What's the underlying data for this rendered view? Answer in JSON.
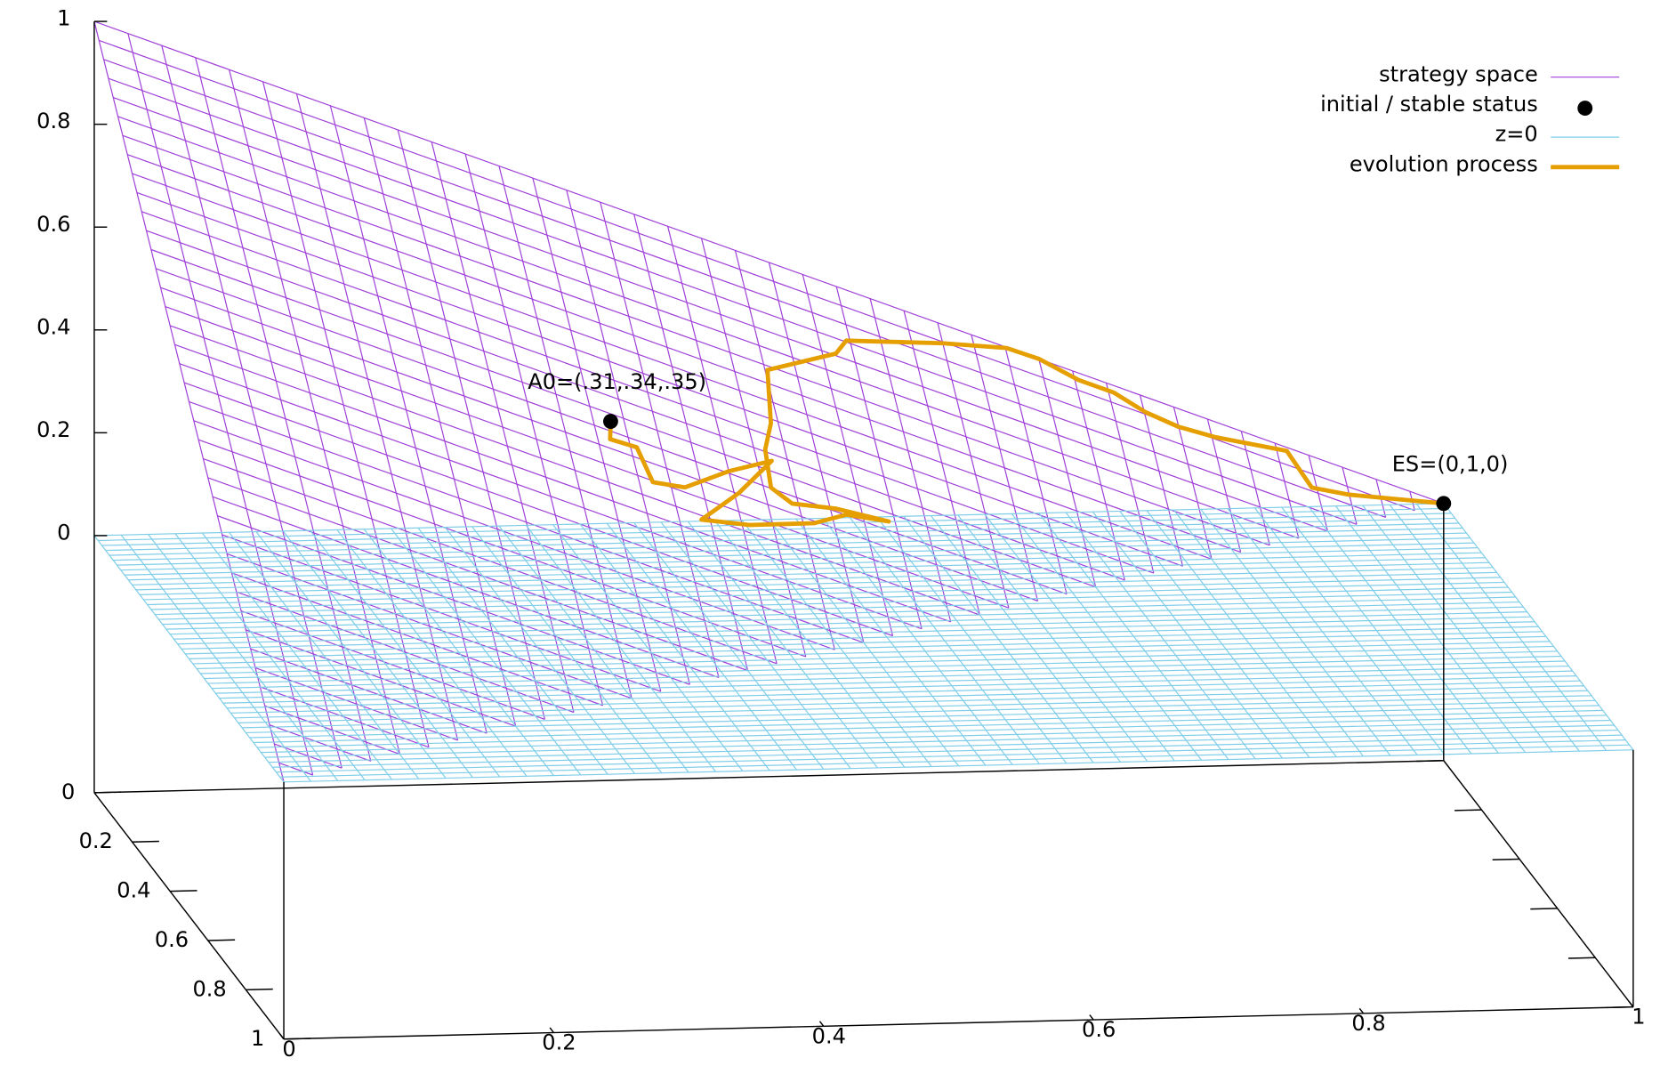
{
  "chart_data": {
    "type": "surface3d",
    "xlim": [
      0,
      1
    ],
    "ylim": [
      0,
      1
    ],
    "zlim": [
      -0.5,
      1
    ],
    "xticks": [
      0,
      0.2,
      0.4,
      0.6,
      0.8,
      1
    ],
    "yticks": [
      0,
      0.2,
      0.4,
      0.6,
      0.8,
      1
    ],
    "zticks": [
      0,
      0.2,
      0.4,
      0.6,
      0.8,
      1
    ],
    "legend": "top-right",
    "series": [
      {
        "name": "strategy space",
        "kind": "surface",
        "color": "#a040d8"
      },
      {
        "name": "initial / stable status",
        "kind": "points",
        "color": "#000000",
        "x": [
          0.339,
          1
        ],
        "y": [
          0.311,
          0
        ],
        "z": [
          0.35,
          0
        ],
        "labels": [
          "A0=(.31,.34,.35)",
          "ES=(0,1,0)"
        ]
      },
      {
        "name": "z=0",
        "kind": "plane",
        "color": "#7fcde8",
        "z": 0
      },
      {
        "name": "evolution process",
        "kind": "line",
        "color": "#e69f00",
        "x": [
          0.339,
          0.335,
          0.355,
          0.361,
          0.386,
          0.425,
          0.462,
          0.429,
          0.393,
          0.431,
          0.484,
          0.512,
          0.545,
          0.504,
          0.47,
          0.456,
          0.459,
          0.469,
          0.477,
          0.536,
          0.547,
          0.625,
          0.676,
          0.7,
          0.728,
          0.754,
          0.776,
          0.8,
          0.828,
          0.883,
          0.896,
          0.925,
          1
        ],
        "y": [
          0.311,
          0.337,
          0.335,
          0.377,
          0.368,
          0.322,
          0.285,
          0.348,
          0.406,
          0.389,
          0.353,
          0.324,
          0.312,
          0.321,
          0.336,
          0.324,
          0.272,
          0.231,
          0.156,
          0.097,
          0.073,
          0.027,
          0.001,
          0,
          0.01,
          0.01,
          0.022,
          0.026,
          0.022,
          0.005,
          0.045,
          0.036,
          0
        ],
        "z": [
          0.35,
          0.328,
          0.31,
          0.262,
          0.246,
          0.253,
          0.253,
          0.223,
          0.201,
          0.18,
          0.163,
          0.164,
          0.143,
          0.175,
          0.194,
          0.22,
          0.269,
          0.3,
          0.367,
          0.367,
          0.38,
          0.348,
          0.323,
          0.3,
          0.262,
          0.236,
          0.202,
          0.174,
          0.15,
          0.112,
          0.059,
          0.039,
          0
        ]
      }
    ]
  }
}
